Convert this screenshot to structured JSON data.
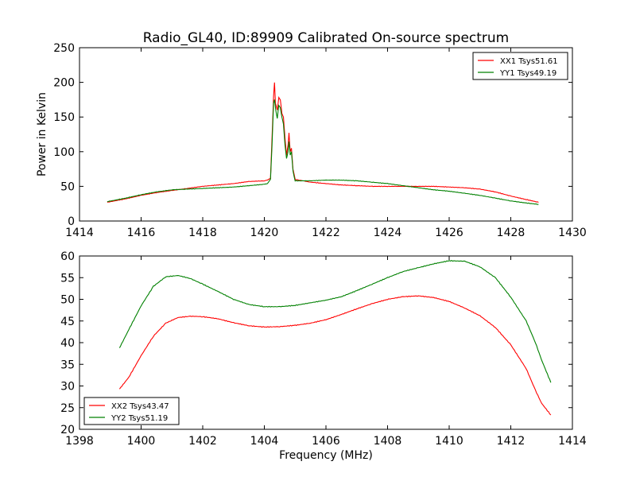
{
  "chart_data": [
    {
      "type": "line",
      "title": "Radio_GL40, ID:89909 Calibrated On-source spectrum",
      "xlabel": "",
      "ylabel": "Power in Kelvin",
      "xlim": [
        1414,
        1430
      ],
      "ylim": [
        0,
        250
      ],
      "xticks": [
        1414,
        1416,
        1418,
        1420,
        1422,
        1424,
        1426,
        1428,
        1430
      ],
      "yticks": [
        0,
        50,
        100,
        150,
        200,
        250
      ],
      "grid": false,
      "legend": "top-right",
      "series": [
        {
          "name": "XX1 Tsys51.61",
          "color": "#ff0000",
          "points": [
            [
              1414.9,
              27
            ],
            [
              1415.5,
              32
            ],
            [
              1416,
              37
            ],
            [
              1416.5,
              41
            ],
            [
              1417,
              44
            ],
            [
              1417.5,
              47
            ],
            [
              1418,
              50
            ],
            [
              1418.5,
              52
            ],
            [
              1419,
              54
            ],
            [
              1419.5,
              57
            ],
            [
              1420,
              58
            ],
            [
              1420.1,
              59
            ],
            [
              1420.2,
              62
            ],
            [
              1420.25,
              120
            ],
            [
              1420.3,
              180
            ],
            [
              1420.33,
              200
            ],
            [
              1420.36,
              170
            ],
            [
              1420.42,
              160
            ],
            [
              1420.47,
              178
            ],
            [
              1420.52,
              175
            ],
            [
              1420.57,
              155
            ],
            [
              1420.62,
              150
            ],
            [
              1420.67,
              120
            ],
            [
              1420.72,
              95
            ],
            [
              1420.77,
              110
            ],
            [
              1420.8,
              127
            ],
            [
              1420.84,
              100
            ],
            [
              1420.88,
              105
            ],
            [
              1420.93,
              75
            ],
            [
              1421,
              60
            ],
            [
              1421.5,
              56
            ],
            [
              1422,
              54
            ],
            [
              1422.5,
              52
            ],
            [
              1423,
              51
            ],
            [
              1423.5,
              50
            ],
            [
              1424,
              50
            ],
            [
              1424.5,
              50
            ],
            [
              1425,
              50
            ],
            [
              1425.5,
              50
            ],
            [
              1426,
              49
            ],
            [
              1426.5,
              48
            ],
            [
              1427,
              46
            ],
            [
              1427.5,
              42
            ],
            [
              1428,
              36
            ],
            [
              1428.5,
              31
            ],
            [
              1428.9,
              27
            ]
          ]
        },
        {
          "name": "YY1 Tsys49.19",
          "color": "#008000",
          "points": [
            [
              1414.9,
              28
            ],
            [
              1415.5,
              33
            ],
            [
              1416,
              38
            ],
            [
              1416.5,
              42
            ],
            [
              1417,
              45
            ],
            [
              1417.5,
              46
            ],
            [
              1418,
              47
            ],
            [
              1418.5,
              48
            ],
            [
              1419,
              49
            ],
            [
              1419.5,
              51
            ],
            [
              1420,
              53
            ],
            [
              1420.1,
              54
            ],
            [
              1420.2,
              60
            ],
            [
              1420.25,
              110
            ],
            [
              1420.3,
              170
            ],
            [
              1420.33,
              175
            ],
            [
              1420.37,
              160
            ],
            [
              1420.42,
              148
            ],
            [
              1420.47,
              167
            ],
            [
              1420.52,
              163
            ],
            [
              1420.57,
              150
            ],
            [
              1420.62,
              140
            ],
            [
              1420.67,
              110
            ],
            [
              1420.72,
              90
            ],
            [
              1420.77,
              100
            ],
            [
              1420.8,
              115
            ],
            [
              1420.84,
              95
            ],
            [
              1420.88,
              100
            ],
            [
              1420.93,
              72
            ],
            [
              1421,
              58
            ],
            [
              1421.5,
              58
            ],
            [
              1422,
              59
            ],
            [
              1422.5,
              59
            ],
            [
              1423,
              58
            ],
            [
              1423.5,
              56
            ],
            [
              1424,
              54
            ],
            [
              1424.5,
              51
            ],
            [
              1425,
              48
            ],
            [
              1425.5,
              45
            ],
            [
              1426,
              43
            ],
            [
              1426.5,
              40
            ],
            [
              1427,
              37
            ],
            [
              1427.5,
              33
            ],
            [
              1428,
              29
            ],
            [
              1428.5,
              26
            ],
            [
              1428.9,
              24
            ]
          ]
        }
      ]
    },
    {
      "type": "line",
      "title": "",
      "xlabel": "Frequency (MHz)",
      "ylabel": "",
      "xlim": [
        1398,
        1414
      ],
      "ylim": [
        20,
        60
      ],
      "xticks": [
        1398,
        1400,
        1402,
        1404,
        1406,
        1408,
        1410,
        1412,
        1414
      ],
      "yticks": [
        20,
        25,
        30,
        35,
        40,
        45,
        50,
        55,
        60
      ],
      "grid": false,
      "legend": "bottom-left",
      "series": [
        {
          "name": "XX2 Tsys43.47",
          "color": "#ff0000",
          "points": [
            [
              1399.3,
              29.3
            ],
            [
              1399.6,
              32
            ],
            [
              1400,
              37
            ],
            [
              1400.4,
              41.5
            ],
            [
              1400.8,
              44.5
            ],
            [
              1401.2,
              45.8
            ],
            [
              1401.6,
              46.1
            ],
            [
              1402,
              46
            ],
            [
              1402.5,
              45.5
            ],
            [
              1403,
              44.6
            ],
            [
              1403.5,
              43.9
            ],
            [
              1404,
              43.6
            ],
            [
              1404.5,
              43.7
            ],
            [
              1405,
              44
            ],
            [
              1405.5,
              44.5
            ],
            [
              1406,
              45.3
            ],
            [
              1406.5,
              46.5
            ],
            [
              1407,
              47.8
            ],
            [
              1407.5,
              49
            ],
            [
              1408,
              50
            ],
            [
              1408.5,
              50.6
            ],
            [
              1409,
              50.8
            ],
            [
              1409.5,
              50.4
            ],
            [
              1410,
              49.5
            ],
            [
              1410.5,
              48
            ],
            [
              1411,
              46.2
            ],
            [
              1411.5,
              43.5
            ],
            [
              1412,
              39.5
            ],
            [
              1412.5,
              34
            ],
            [
              1412.8,
              29
            ],
            [
              1413,
              26
            ],
            [
              1413.3,
              23.3
            ]
          ]
        },
        {
          "name": "YY2 Tsys51.19",
          "color": "#008000",
          "points": [
            [
              1399.3,
              38.8
            ],
            [
              1399.6,
              43
            ],
            [
              1400,
              48.5
            ],
            [
              1400.4,
              53
            ],
            [
              1400.8,
              55.2
            ],
            [
              1401.2,
              55.5
            ],
            [
              1401.6,
              54.8
            ],
            [
              1402,
              53.5
            ],
            [
              1402.5,
              51.8
            ],
            [
              1403,
              50
            ],
            [
              1403.5,
              48.8
            ],
            [
              1404,
              48.3
            ],
            [
              1404.5,
              48.3
            ],
            [
              1405,
              48.6
            ],
            [
              1405.5,
              49.2
            ],
            [
              1406,
              49.8
            ],
            [
              1406.5,
              50.6
            ],
            [
              1407,
              52
            ],
            [
              1407.5,
              53.5
            ],
            [
              1408,
              55
            ],
            [
              1408.5,
              56.4
            ],
            [
              1409,
              57.3
            ],
            [
              1409.5,
              58.2
            ],
            [
              1410,
              58.9
            ],
            [
              1410.5,
              58.8
            ],
            [
              1411,
              57.5
            ],
            [
              1411.5,
              55
            ],
            [
              1412,
              50.5
            ],
            [
              1412.5,
              45
            ],
            [
              1412.8,
              40
            ],
            [
              1413,
              36
            ],
            [
              1413.3,
              30.8
            ]
          ]
        }
      ]
    }
  ]
}
